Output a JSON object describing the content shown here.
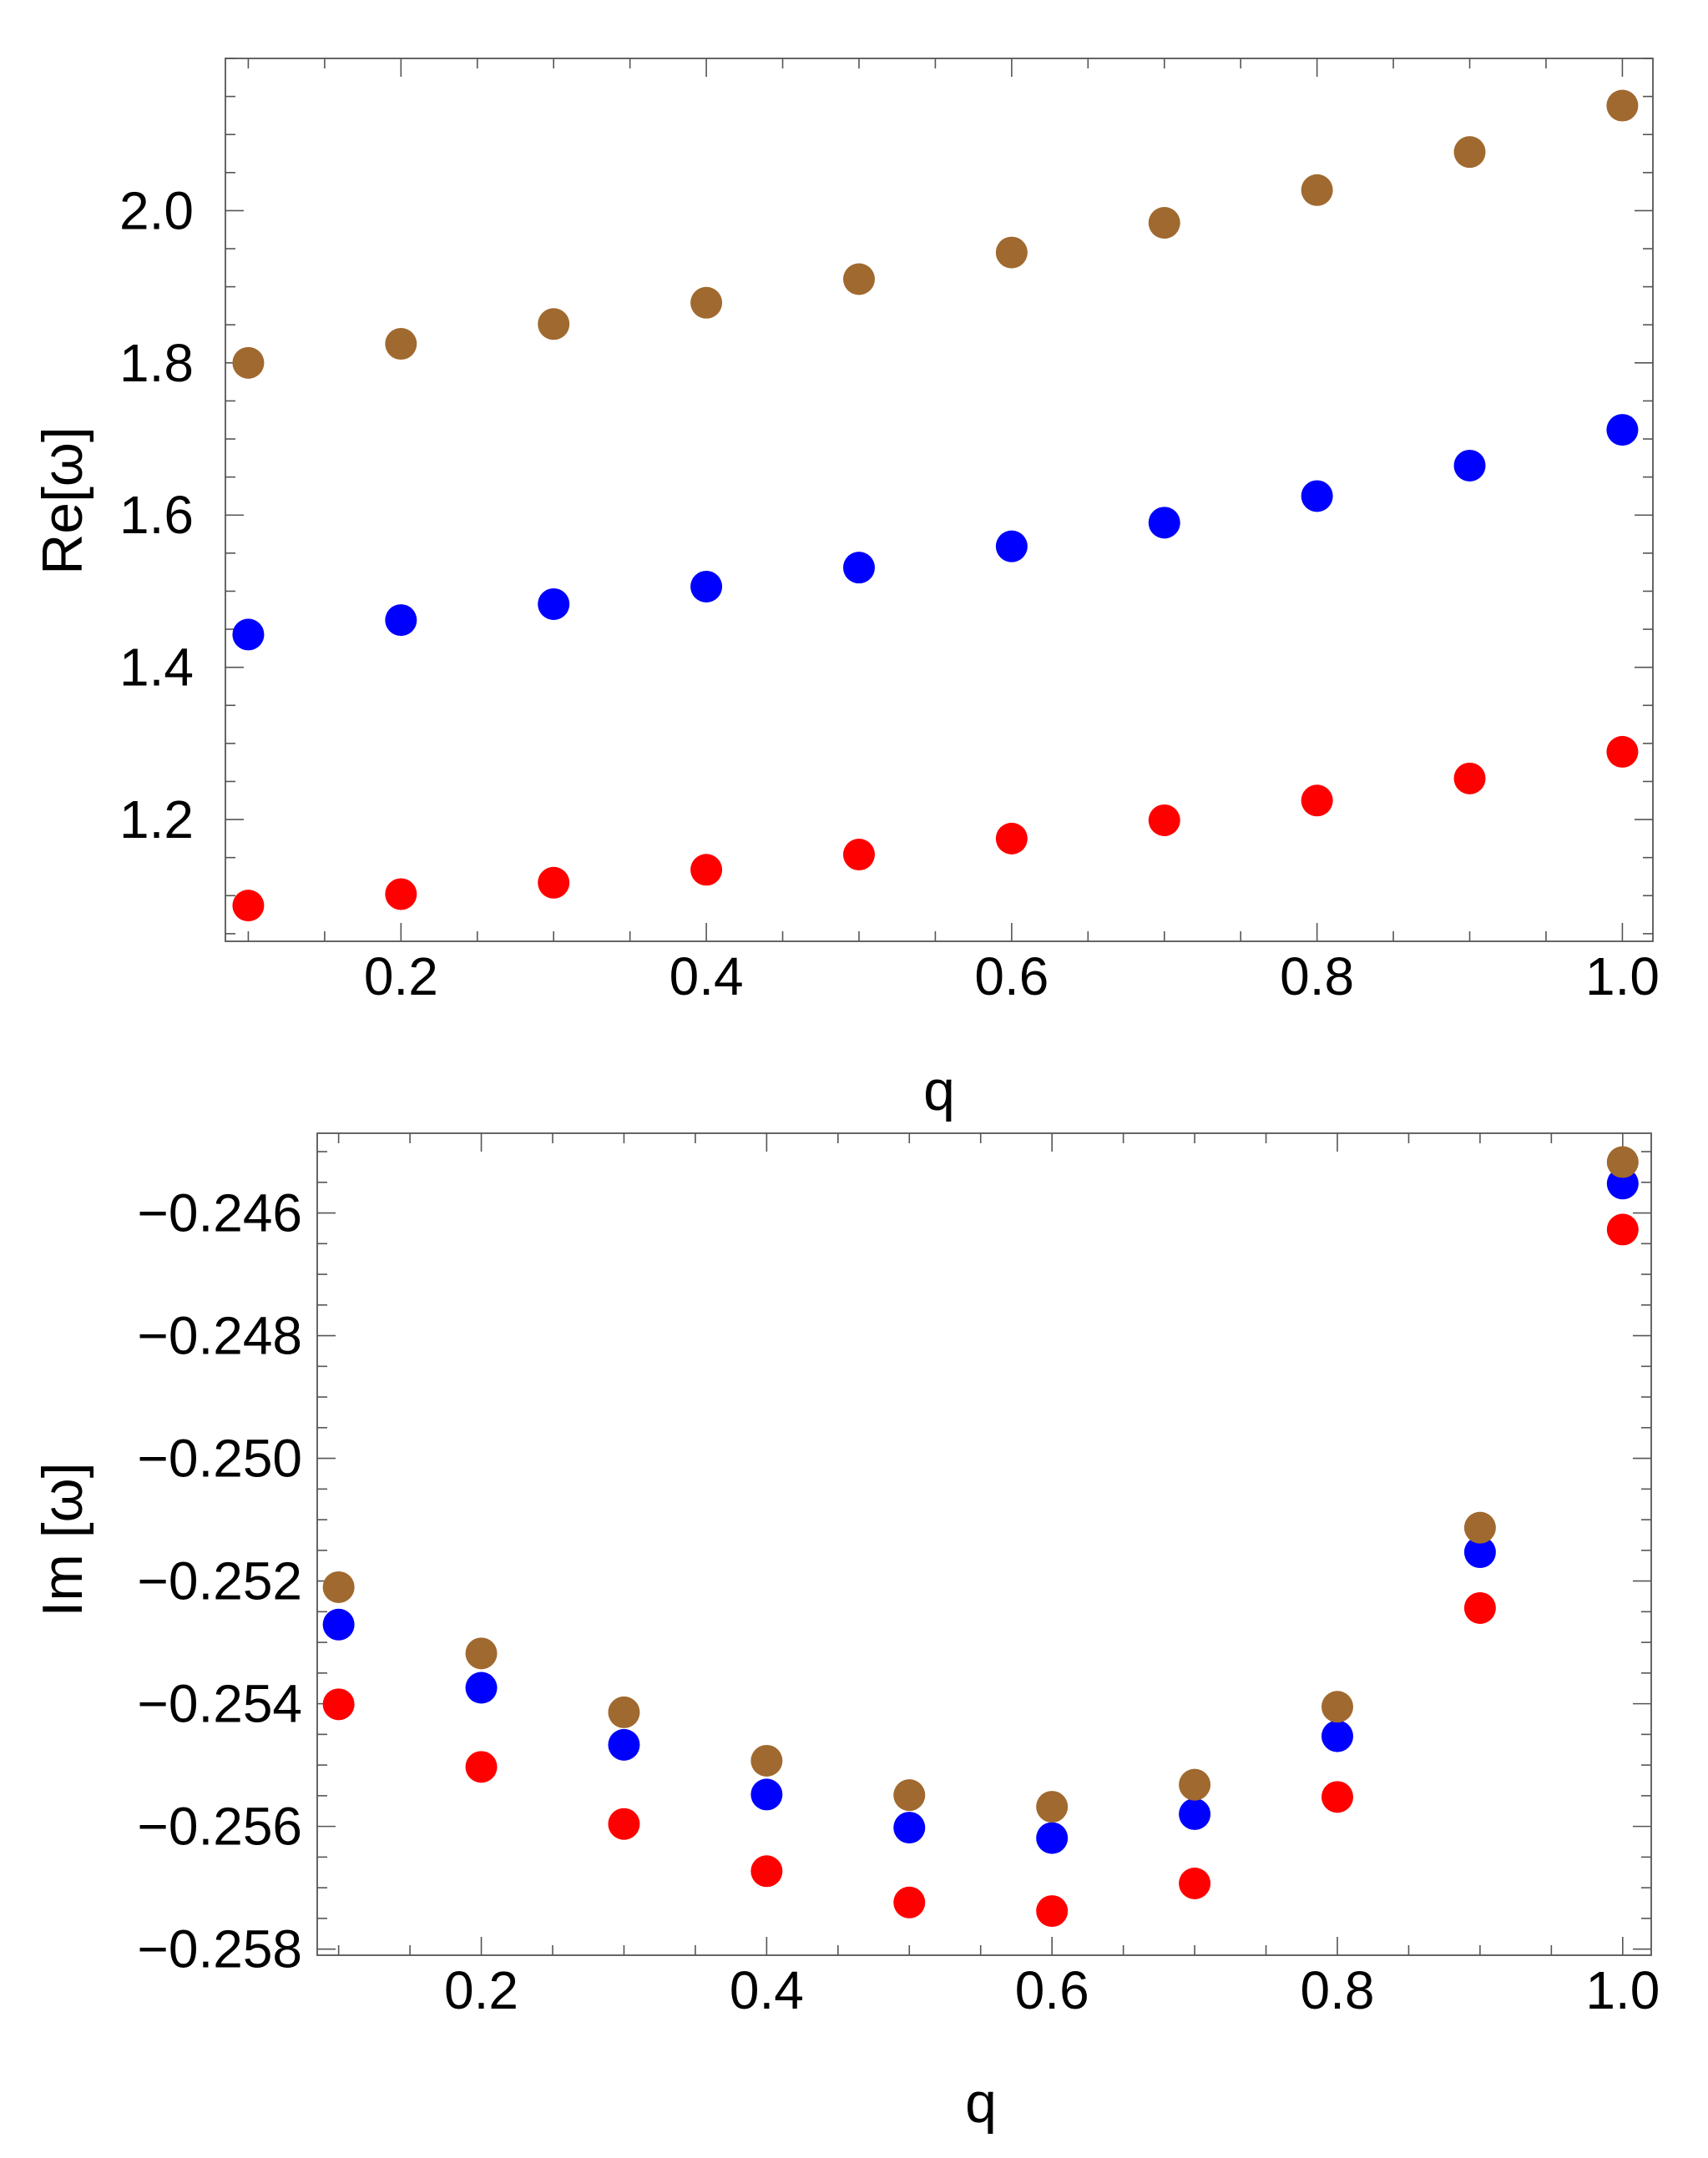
{
  "colors": {
    "series_n0": "#FF0000",
    "series_n1": "#0000FF",
    "series_n2": "#A0692F",
    "frame": "#555555"
  },
  "chart_data": [
    {
      "type": "scatter",
      "xlabel": "q",
      "ylabel": "Re[ω]",
      "xlim": [
        0.085,
        1.02
      ],
      "ylim": [
        1.04,
        2.2
      ],
      "x_ticks": [
        0.2,
        0.4,
        0.6,
        0.8,
        1.0
      ],
      "x_tick_labels": [
        "0.2",
        "0.4",
        "0.6",
        "0.8",
        "1.0"
      ],
      "y_ticks": [
        1.2,
        1.4,
        1.6,
        1.8,
        2.0
      ],
      "y_tick_labels": [
        "1.2",
        "1.4",
        "1.6",
        "1.8",
        "2.0"
      ],
      "x_minor_step": 0.05,
      "y_minor_step": 0.05,
      "x": [
        0.1,
        0.2,
        0.3,
        0.4,
        0.5,
        0.6,
        0.7,
        0.8,
        0.9,
        1.0
      ],
      "series": [
        {
          "name": "red",
          "color": "#FF0000",
          "values": [
            1.087,
            1.102,
            1.117,
            1.134,
            1.154,
            1.175,
            1.199,
            1.225,
            1.254,
            1.289
          ]
        },
        {
          "name": "blue",
          "color": "#0000FF",
          "values": [
            1.443,
            1.462,
            1.483,
            1.506,
            1.531,
            1.559,
            1.59,
            1.625,
            1.665,
            1.712
          ]
        },
        {
          "name": "brown",
          "color": "#A0692F",
          "values": [
            1.8,
            1.825,
            1.851,
            1.879,
            1.91,
            1.945,
            1.984,
            2.027,
            2.077,
            2.138
          ]
        }
      ]
    },
    {
      "type": "scatter",
      "xlabel": "q",
      "ylabel": "Im [ω]",
      "xlim": [
        0.085,
        1.02
      ],
      "ylim": [
        -0.2581,
        -0.2447
      ],
      "x_ticks": [
        0.2,
        0.4,
        0.6,
        0.8,
        1.0
      ],
      "x_tick_labels": [
        "0.2",
        "0.4",
        "0.6",
        "0.8",
        "1.0"
      ],
      "y_ticks": [
        -0.258,
        -0.256,
        -0.254,
        -0.252,
        -0.25,
        -0.248,
        -0.246
      ],
      "y_tick_labels": [
        "−0.258",
        "−0.256",
        "−0.254",
        "−0.252",
        "−0.250",
        "−0.248",
        "−0.246"
      ],
      "x_minor_step": 0.05,
      "y_minor_step": 0.0005,
      "x": [
        0.1,
        0.2,
        0.3,
        0.4,
        0.5,
        0.6,
        0.7,
        0.8,
        0.9,
        1.0
      ],
      "series": [
        {
          "name": "red",
          "color": "#FF0000",
          "values": [
            -0.25401,
            -0.25503,
            -0.25596,
            -0.25673,
            -0.25724,
            -0.25738,
            -0.25693,
            -0.25552,
            -0.25244,
            -0.24627
          ]
        },
        {
          "name": "blue",
          "color": "#0000FF",
          "values": [
            -0.25271,
            -0.25374,
            -0.25467,
            -0.25548,
            -0.25602,
            -0.25619,
            -0.2558,
            -0.25453,
            -0.25153,
            -0.24552
          ]
        },
        {
          "name": "brown",
          "color": "#A0692F",
          "values": [
            -0.2521,
            -0.25318,
            -0.25414,
            -0.25493,
            -0.25549,
            -0.25568,
            -0.25532,
            -0.25405,
            -0.25113,
            -0.24517
          ]
        }
      ]
    }
  ]
}
